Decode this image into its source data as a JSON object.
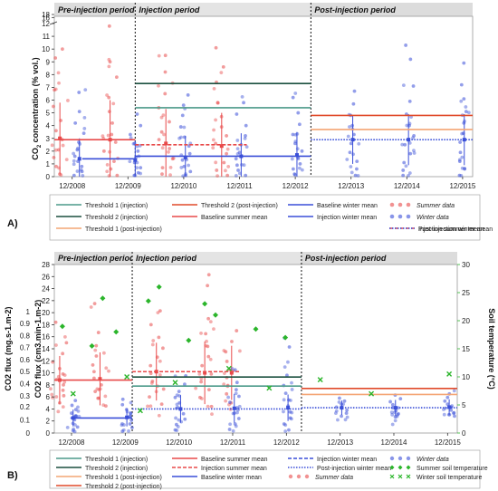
{
  "colors": {
    "threshold1_injection": "#4c9a8a",
    "threshold2_injection": "#1a4f3f",
    "threshold1_post": "#f4a574",
    "threshold2_post": "#e04a2a",
    "summer": "#e84a4a",
    "winter": "#3a4fd8",
    "soil_temp": "#2bb52b",
    "period_band": "#d8d8d8"
  },
  "chart_data": [
    {
      "id": "A",
      "type": "scatter",
      "panel_label": "A)",
      "ylabel": "CO2 concentration (% vol.)",
      "ylabel_main": "CO",
      "ylabel_sub": "2",
      "ylabel_rest": " concentration (% vol.)",
      "xlabel": "",
      "xlim": [
        2008.6,
        2016.1
      ],
      "x_ticks": [
        2008.92,
        2009.92,
        2010.92,
        2011.92,
        2012.92,
        2013.92,
        2014.92,
        2015.92
      ],
      "x_tick_labels": [
        "12/2008",
        "12/2009",
        "12/2010",
        "12/2011",
        "12/2012",
        "12/2013",
        "12/2014",
        "12/2015"
      ],
      "y_ticks": [
        0,
        1,
        2,
        3,
        4,
        5,
        6,
        7,
        8,
        9,
        10,
        11,
        12,
        16,
        18
      ],
      "y_break": true,
      "grid": false,
      "periods": [
        {
          "label": "Pre-injection period",
          "x_start": 2008.6,
          "x_end": 2010.05
        },
        {
          "label": "Injection period",
          "x_start": 2010.05,
          "x_end": 2013.2
        },
        {
          "label": "Post-injection period",
          "x_start": 2013.2,
          "x_end": 2016.1
        }
      ],
      "period_dividers": [
        2010.05,
        2013.2
      ],
      "lines": [
        {
          "name": "Threshold 1 (injection)",
          "color_key": "threshold1_injection",
          "style": "solid",
          "x": [
            2010.05,
            2013.2
          ],
          "y": 5.4
        },
        {
          "name": "Threshold 2 (injection)",
          "color_key": "threshold2_injection",
          "style": "solid",
          "x": [
            2010.05,
            2013.2
          ],
          "y": 7.3
        },
        {
          "name": "Threshold 1 (post-injection)",
          "color_key": "threshold1_post",
          "style": "solid",
          "x": [
            2013.2,
            2016.1
          ],
          "y": 3.7
        },
        {
          "name": "Threshold 2 (post-injection)",
          "color_key": "threshold2_post",
          "style": "solid",
          "x": [
            2013.2,
            2016.1
          ],
          "y": 4.8
        },
        {
          "name": "Baseline summer mean",
          "color_key": "summer",
          "style": "solid",
          "x": [
            2008.6,
            2010.05
          ],
          "y": 2.9
        },
        {
          "name": "Injection summer mean",
          "color_key": "summer",
          "style": "dashed",
          "x": [
            2010.05,
            2012.05
          ],
          "y": 2.5
        },
        {
          "name": "Baseline winter mean",
          "color_key": "winter",
          "style": "solid",
          "x": [
            2009.1,
            2010.05
          ],
          "y": 1.4
        },
        {
          "name": "Injection winter mean",
          "color_key": "winter",
          "style": "solid",
          "x": [
            2010.05,
            2013.2
          ],
          "y": 1.6
        },
        {
          "name": "Post-injection winter mean",
          "color_key": "winter",
          "style": "dotted",
          "x": [
            2013.2,
            2016.1
          ],
          "y": 2.9
        }
      ],
      "summer_groups": [
        {
          "x": 2008.7,
          "mean": 3.0,
          "err": 2.8,
          "points": [
            0.2,
            0.8,
            1.5,
            2.1,
            2.9,
            3.6,
            4.4,
            5.5,
            6.8,
            9.3,
            10.0
          ]
        },
        {
          "x": 2009.6,
          "mean": 2.9,
          "err": 3.1,
          "points": [
            0.1,
            0.6,
            1.2,
            2.0,
            2.7,
            3.3,
            4.2,
            5.1,
            6.2,
            7.8,
            9.0,
            11.8
          ]
        },
        {
          "x": 2010.6,
          "mean": 2.6,
          "err": 2.7,
          "points": [
            0.2,
            0.7,
            1.4,
            2.2,
            2.9,
            3.5,
            4.3,
            5.4,
            6.5,
            8.2,
            9.5
          ]
        },
        {
          "x": 2011.6,
          "mean": 2.4,
          "err": 2.6,
          "points": [
            0.1,
            0.5,
            1.1,
            1.8,
            2.6,
            3.2,
            3.9,
            4.7,
            5.8,
            7.4,
            8.6,
            10.1
          ]
        }
      ],
      "winter_groups": [
        {
          "x": 2009.05,
          "mean": 1.4,
          "err": 1.6,
          "points": [
            0.1,
            0.4,
            0.8,
            1.2,
            1.6,
            2.1,
            2.7,
            3.4,
            4.2,
            5.1,
            6.6
          ]
        },
        {
          "x": 2010.05,
          "mean": 1.3,
          "err": 1.5,
          "points": [
            0.1,
            0.3,
            0.7,
            1.1,
            1.5,
            2.0,
            2.6,
            3.3,
            4.0,
            4.9
          ]
        },
        {
          "x": 2010.95,
          "mean": 1.5,
          "err": 1.7,
          "points": [
            0.1,
            0.4,
            0.8,
            1.3,
            1.8,
            2.4,
            3.1,
            3.9,
            4.8,
            5.6,
            6.4
          ]
        },
        {
          "x": 2011.95,
          "mean": 1.6,
          "err": 1.8,
          "points": [
            0.1,
            0.5,
            0.9,
            1.4,
            1.9,
            2.5,
            3.2,
            4.0,
            4.9,
            5.8
          ]
        },
        {
          "x": 2012.95,
          "mean": 1.7,
          "err": 1.8,
          "points": [
            0.2,
            0.6,
            1.0,
            1.5,
            2.0,
            2.6,
            3.3,
            4.1,
            5.0,
            6.2
          ]
        },
        {
          "x": 2013.95,
          "mean": 2.9,
          "err": 1.9,
          "points": [
            0.1,
            0.6,
            1.2,
            1.9,
            2.6,
            3.3,
            4.0,
            4.8,
            5.7,
            6.7
          ]
        },
        {
          "x": 2014.95,
          "mean": 2.9,
          "err": 2.0,
          "points": [
            0.1,
            0.5,
            1.1,
            1.8,
            2.5,
            3.2,
            4.0,
            4.9,
            5.9,
            7.1,
            9.2,
            10.3
          ]
        },
        {
          "x": 2015.95,
          "mean": 2.9,
          "err": 2.0,
          "points": [
            0.1,
            0.6,
            1.2,
            1.9,
            2.7,
            3.4,
            4.2,
            5.1,
            6.1,
            7.2,
            8.9
          ]
        }
      ],
      "legend": [
        {
          "label": "Threshold 1 (injection)",
          "color_key": "threshold1_injection",
          "style": "solid"
        },
        {
          "label": "Threshold 2 (post-injection)",
          "color_key": "threshold2_post",
          "style": "solid"
        },
        {
          "label": "Baseline winter mean",
          "color_key": "winter",
          "style": "solid"
        },
        {
          "label": "Summer data",
          "color_key": "summer",
          "style": "dots",
          "italic": true
        },
        {
          "label": "Threshold 2 (injection)",
          "color_key": "threshold2_injection",
          "style": "solid"
        },
        {
          "label": "Baseline summer mean",
          "color_key": "summer",
          "style": "solid"
        },
        {
          "label": "Injection winter mean",
          "color_key": "winter",
          "style": "solid"
        },
        {
          "label": "Winter data",
          "color_key": "winter",
          "style": "dots",
          "italic": true
        },
        {
          "label": "Threshold 1 (post-injection)",
          "color_key": "threshold1_post",
          "style": "solid"
        },
        {
          "label": "Injection summer mean",
          "color_key": "summer",
          "style": "dashed"
        },
        {
          "label": "Post-injection winter mean",
          "color_key": "winter",
          "style": "dotted"
        }
      ]
    },
    {
      "id": "B",
      "type": "scatter",
      "panel_label": "B)",
      "ylabel_left_outer": "CO2 flux (mg.s-1.m-2)",
      "ylabel_left_inner": "CO2 flux (cm3.min-1.m-2)",
      "ylabel_right": "Soil temperature (°C)",
      "xlim": [
        2008.6,
        2016.1
      ],
      "x_ticks": [
        2008.92,
        2009.92,
        2010.92,
        2011.92,
        2012.92,
        2013.92,
        2014.92,
        2015.92
      ],
      "x_tick_labels": [
        "12/2008",
        "12/2009",
        "12/2010",
        "12/2011",
        "12/2012",
        "12/2013",
        "12/2014",
        "12/2015"
      ],
      "y_ticks_inner": [
        0,
        2,
        4,
        6,
        8,
        10,
        12,
        14,
        16,
        18,
        20,
        22,
        24,
        26,
        28
      ],
      "y_ticks_outer": [
        "0",
        "0.1",
        "0.2",
        "0.3",
        "0.4",
        "0.5",
        "0.6",
        "0.7",
        "0.8",
        "0.9",
        "1"
      ],
      "y_ticks_right": [
        0,
        5,
        10,
        15,
        20,
        25,
        30
      ],
      "ylim": [
        0,
        28
      ],
      "ylim_right": [
        0,
        30
      ],
      "grid": false,
      "periods": [
        {
          "label": "Pre-injection period",
          "x_start": 2008.6,
          "x_end": 2010.05
        },
        {
          "label": "Injection period",
          "x_start": 2010.05,
          "x_end": 2013.2
        },
        {
          "label": "Post-injection period",
          "x_start": 2013.2,
          "x_end": 2016.1
        }
      ],
      "period_dividers": [
        2010.05,
        2013.2
      ],
      "lines": [
        {
          "name": "Threshold 1 (injection)",
          "color_key": "threshold1_injection",
          "style": "solid",
          "x": [
            2010.05,
            2013.2
          ],
          "y": 7.8
        },
        {
          "name": "Threshold 2 (injection)",
          "color_key": "threshold2_injection",
          "style": "solid",
          "x": [
            2010.05,
            2013.2
          ],
          "y": 9.3
        },
        {
          "name": "Threshold 1 (post-injection)",
          "color_key": "threshold1_post",
          "style": "solid",
          "x": [
            2013.2,
            2016.1
          ],
          "y": 6.4
        },
        {
          "name": "Threshold 2 (post-injection)",
          "color_key": "threshold2_post",
          "style": "solid",
          "x": [
            2013.2,
            2016.1
          ],
          "y": 7.4
        },
        {
          "name": "Baseline summer mean",
          "color_key": "summer",
          "style": "solid",
          "x": [
            2008.6,
            2010.05
          ],
          "y": 8.8
        },
        {
          "name": "Injection summer mean",
          "color_key": "summer",
          "style": "dashed",
          "x": [
            2010.05,
            2012.05
          ],
          "y": 10.2
        },
        {
          "name": "Baseline winter mean",
          "color_key": "winter",
          "style": "solid",
          "x": [
            2008.9,
            2010.05
          ],
          "y": 2.5
        },
        {
          "name": "Injection winter mean",
          "color_key": "winter",
          "style": "dotted",
          "x": [
            2010.05,
            2013.2
          ],
          "y": 4.0
        },
        {
          "name": "Post-injection winter mean",
          "color_key": "winter",
          "style": "dotted",
          "x": [
            2013.2,
            2016.1
          ],
          "y": 4.2
        }
      ],
      "summer_groups": [
        {
          "x": 2008.7,
          "mean": 8.8,
          "err": 4.0,
          "points": [
            5.0,
            6.2,
            7.1,
            8.0,
            8.9,
            9.8,
            10.7,
            11.8,
            13.2,
            15.0,
            18.4
          ]
        },
        {
          "x": 2009.45,
          "mean": 9.0,
          "err": 4.4,
          "points": [
            4.5,
            5.8,
            6.9,
            8.0,
            9.1,
            10.2,
            11.3,
            12.8,
            14.5,
            16.7,
            21.5
          ]
        },
        {
          "x": 2010.5,
          "mean": 10.2,
          "err": 4.8,
          "points": [
            4.8,
            6.0,
            7.3,
            8.6,
            9.9,
            11.2,
            12.6,
            14.1,
            15.9,
            18.0,
            20.3
          ]
        },
        {
          "x": 2011.4,
          "mean": 10.0,
          "err": 5.2,
          "points": [
            4.4,
            5.9,
            7.2,
            8.5,
            9.8,
            11.2,
            12.7,
            14.4,
            16.5,
            19.0,
            24.5,
            26.3
          ]
        },
        {
          "x": 2011.9,
          "mean": 10.0,
          "err": 4.5,
          "points": [
            5.0,
            6.5,
            7.9,
            9.2,
            10.5,
            11.9,
            13.5,
            15.2,
            17.0
          ]
        }
      ],
      "winter_groups": [
        {
          "x": 2008.95,
          "mean": 2.5,
          "err": 1.4,
          "points": [
            0.4,
            1.0,
            1.6,
            2.2,
            2.8,
            3.3,
            3.9,
            4.6,
            5.4
          ]
        },
        {
          "x": 2009.95,
          "mean": 2.6,
          "err": 1.5,
          "points": [
            0.3,
            0.9,
            1.5,
            2.1,
            2.7,
            3.3,
            3.9,
            4.7,
            5.6
          ]
        },
        {
          "x": 2010.95,
          "mean": 4.0,
          "err": 2.3,
          "points": [
            0.5,
            1.4,
            2.3,
            3.2,
            4.1,
            5.0,
            5.9,
            6.9,
            8.1,
            9.5
          ]
        },
        {
          "x": 2011.95,
          "mean": 4.1,
          "err": 2.4,
          "points": [
            0.6,
            1.5,
            2.4,
            3.3,
            4.2,
            5.1,
            6.1,
            7.2,
            8.4,
            10.5
          ]
        },
        {
          "x": 2012.95,
          "mean": 4.2,
          "err": 2.2,
          "points": [
            0.5,
            1.5,
            2.5,
            3.5,
            4.5,
            5.5,
            6.6,
            7.9,
            9.6,
            14.3,
            15.8
          ]
        },
        {
          "x": 2013.95,
          "mean": 4.2,
          "err": 1.2,
          "points": [
            2.8,
            3.3,
            3.8,
            4.3,
            4.8,
            5.3,
            5.8
          ]
        },
        {
          "x": 2014.95,
          "mean": 4.2,
          "err": 1.3,
          "points": [
            2.7,
            3.2,
            3.7,
            4.2,
            4.7,
            5.2,
            5.7,
            6.3
          ]
        },
        {
          "x": 2015.95,
          "mean": 4.3,
          "err": 1.3,
          "points": [
            2.8,
            3.3,
            3.8,
            4.3,
            4.8,
            5.3,
            5.9,
            6.5
          ]
        }
      ],
      "summer_temperature": [
        {
          "x": 2008.75,
          "y": 19.0
        },
        {
          "x": 2009.3,
          "y": 15.5
        },
        {
          "x": 2009.5,
          "y": 24.0
        },
        {
          "x": 2009.75,
          "y": 18.0
        },
        {
          "x": 2010.35,
          "y": 23.5
        },
        {
          "x": 2010.55,
          "y": 26.0
        },
        {
          "x": 2011.1,
          "y": 16.5
        },
        {
          "x": 2011.4,
          "y": 23.0
        },
        {
          "x": 2011.6,
          "y": 21.0
        },
        {
          "x": 2012.35,
          "y": 18.5
        },
        {
          "x": 2012.9,
          "y": 17.0
        }
      ],
      "winter_temperature": [
        {
          "x": 2008.95,
          "y": 7.0
        },
        {
          "x": 2009.95,
          "y": 10.0
        },
        {
          "x": 2010.2,
          "y": 4.0
        },
        {
          "x": 2010.85,
          "y": 9.0
        },
        {
          "x": 2011.85,
          "y": 11.5
        },
        {
          "x": 2012.6,
          "y": 8.0
        },
        {
          "x": 2013.55,
          "y": 9.5
        },
        {
          "x": 2014.5,
          "y": 7.0
        },
        {
          "x": 2015.95,
          "y": 10.5
        }
      ],
      "legend": [
        {
          "label": "Threshold 1 (injection)",
          "color_key": "threshold1_injection",
          "style": "solid"
        },
        {
          "label": "Baseline summer mean",
          "color_key": "summer",
          "style": "solid"
        },
        {
          "label": "Injection winter mean",
          "color_key": "winter",
          "style": "dashed"
        },
        {
          "label": "Winter data",
          "color_key": "winter",
          "style": "dots",
          "italic": true
        },
        {
          "label": "Threshold 2 (injection)",
          "color_key": "threshold2_injection",
          "style": "solid"
        },
        {
          "label": "Injection summer mean",
          "color_key": "summer",
          "style": "dashed"
        },
        {
          "label": "Post-injection winter mean",
          "color_key": "winter",
          "style": "dotted"
        },
        {
          "label": "Summer soil temperature",
          "color_key": "soil_temp",
          "style": "diamonds"
        },
        {
          "label": "Threshold 1 (post-injection)",
          "color_key": "threshold1_post",
          "style": "solid"
        },
        {
          "label": "Baseline winter mean",
          "color_key": "winter",
          "style": "solid"
        },
        {
          "label": "Summer data",
          "color_key": "summer",
          "style": "dots",
          "italic": true
        },
        {
          "label": "Winter soil temperature",
          "color_key": "soil_temp",
          "style": "crosses"
        },
        {
          "label": "Threshold 2 (post-injection)",
          "color_key": "threshold2_post",
          "style": "solid"
        }
      ]
    }
  ]
}
